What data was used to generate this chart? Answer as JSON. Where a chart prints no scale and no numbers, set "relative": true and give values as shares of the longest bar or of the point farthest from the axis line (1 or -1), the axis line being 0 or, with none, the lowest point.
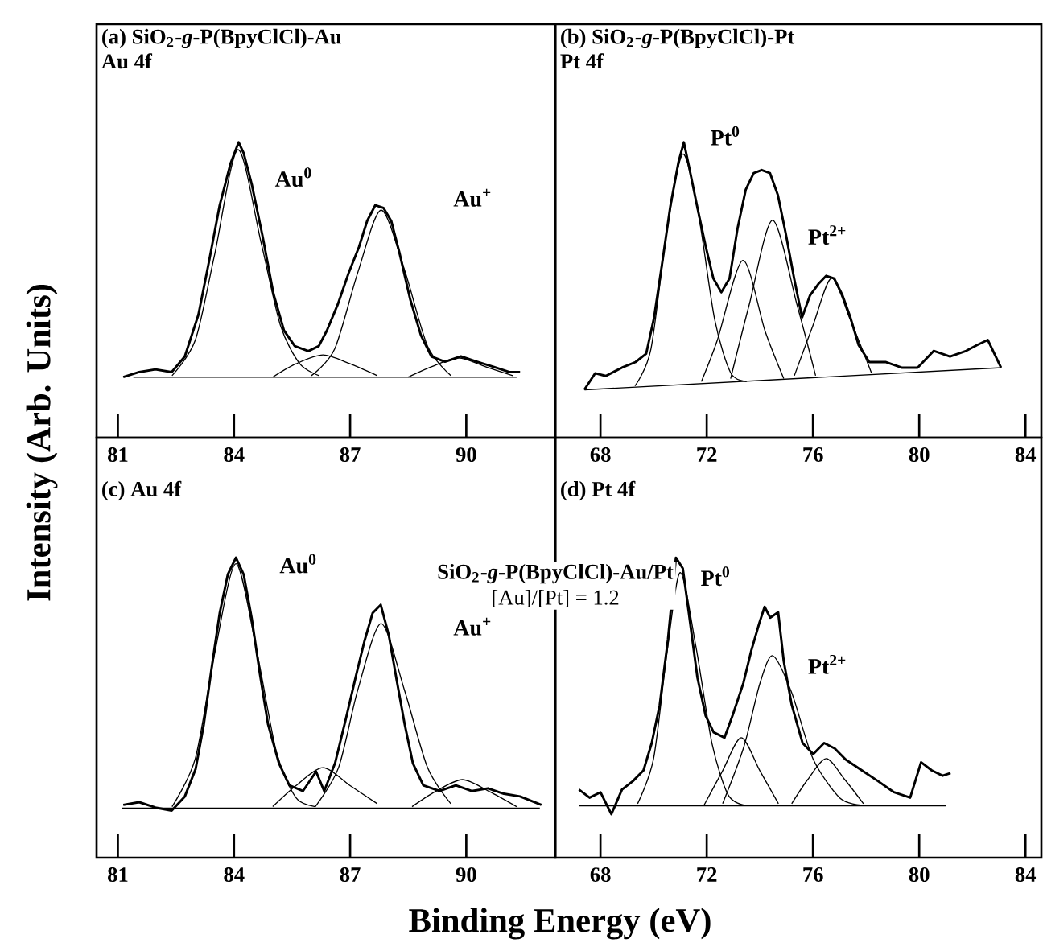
{
  "chart_data": [
    {
      "type": "line",
      "relative": true,
      "title": "(a) SiO$_{2}$-*g*-P(BpyClCl)-Au",
      "subtitle": "Au 4f",
      "ylabel": "Intensity (Arb. Units)",
      "xlim": [
        80.45,
        92.3
      ],
      "xticks": [
        81,
        84,
        87,
        90
      ],
      "series": [
        {
          "color": "#000000",
          "x": [
            81.14,
            81.55,
            81.97,
            82.39,
            82.73,
            83.08,
            83.35,
            83.63,
            83.91,
            84.12,
            84.25,
            84.46,
            84.74,
            85.02,
            85.29,
            85.57,
            85.92,
            86.19,
            86.4,
            86.68,
            86.96,
            87.23,
            87.44,
            87.65,
            87.86,
            88.06,
            88.27,
            88.55,
            88.83,
            89.1,
            89.45,
            89.86,
            90.28,
            90.7,
            91.11,
            91.39
          ],
          "values": [
            0.205,
            0.222,
            0.231,
            0.222,
            0.275,
            0.416,
            0.593,
            0.787,
            0.928,
            1.0,
            0.963,
            0.857,
            0.681,
            0.487,
            0.363,
            0.31,
            0.293,
            0.31,
            0.363,
            0.451,
            0.557,
            0.646,
            0.734,
            0.787,
            0.778,
            0.734,
            0.628,
            0.469,
            0.346,
            0.275,
            0.257,
            0.275,
            0.257,
            0.24,
            0.222,
            0.222
          ]
        },
        {
          "color": "#000000",
          "x": [
            81.4,
            91.3
          ],
          "values": [
            0.205,
            0.205
          ]
        },
        {
          "color": "#000000",
          "x": [
            82.4,
            83.0,
            83.5,
            84.1,
            84.7,
            85.2,
            85.7,
            86.2
          ],
          "values": [
            0.21,
            0.33,
            0.62,
            0.975,
            0.66,
            0.38,
            0.25,
            0.21
          ]
        },
        {
          "color": "#000000",
          "x": [
            86.0,
            86.6,
            87.2,
            87.8,
            88.4,
            89.0,
            89.6
          ],
          "values": [
            0.21,
            0.3,
            0.56,
            0.77,
            0.57,
            0.31,
            0.21
          ]
        },
        {
          "color": "#000000",
          "x": [
            85.0,
            85.6,
            86.3,
            87.0,
            87.7
          ],
          "values": [
            0.205,
            0.25,
            0.28,
            0.25,
            0.21
          ]
        },
        {
          "color": "#000000",
          "x": [
            88.5,
            89.1,
            89.8,
            90.5,
            91.2
          ],
          "values": [
            0.205,
            0.24,
            0.27,
            0.24,
            0.21
          ]
        }
      ],
      "annotations": [
        "Au$^{0}$",
        "Au$^{+}$"
      ]
    },
    {
      "type": "line",
      "relative": true,
      "title": "(b) SiO$_{2}$-*g*-P(BpyClCl)-Pt",
      "subtitle": "Pt 4f",
      "xlim": [
        66.3,
        84.6
      ],
      "xticks": [
        68,
        72,
        76,
        80,
        84
      ],
      "series": [
        {
          "color": "#000000",
          "x": [
            67.39,
            67.8,
            68.2,
            68.81,
            69.32,
            69.72,
            70.02,
            70.33,
            70.63,
            70.94,
            71.14,
            71.34,
            71.64,
            71.95,
            72.25,
            72.55,
            72.86,
            73.16,
            73.47,
            73.77,
            74.07,
            74.38,
            74.68,
            74.98,
            75.29,
            75.59,
            75.89,
            76.2,
            76.5,
            76.8,
            77.11,
            77.41,
            77.72,
            78.12,
            78.73,
            79.34,
            79.94,
            80.55,
            81.16,
            81.77,
            82.17,
            82.58,
            83.08
          ],
          "values": [
            0.162,
            0.218,
            0.209,
            0.237,
            0.256,
            0.284,
            0.407,
            0.595,
            0.783,
            0.934,
            1.0,
            0.915,
            0.783,
            0.652,
            0.539,
            0.492,
            0.539,
            0.708,
            0.84,
            0.896,
            0.906,
            0.896,
            0.821,
            0.689,
            0.539,
            0.407,
            0.482,
            0.52,
            0.548,
            0.539,
            0.482,
            0.407,
            0.313,
            0.256,
            0.256,
            0.237,
            0.237,
            0.294,
            0.275,
            0.294,
            0.313,
            0.331,
            0.237
          ]
        },
        {
          "color": "#000000",
          "x": [
            67.4,
            83.1
          ],
          "values": [
            0.162,
            0.237
          ]
        },
        {
          "color": "#000000",
          "x": [
            69.3,
            69.9,
            70.5,
            71.1,
            71.7,
            72.3,
            72.9,
            73.5
          ],
          "values": [
            0.175,
            0.3,
            0.7,
            0.96,
            0.75,
            0.4,
            0.22,
            0.19
          ]
        },
        {
          "color": "#000000",
          "x": [
            71.8,
            72.4,
            73.36,
            74.2,
            74.9
          ],
          "values": [
            0.19,
            0.33,
            0.6,
            0.36,
            0.2
          ]
        },
        {
          "color": "#000000",
          "x": [
            72.9,
            73.6,
            74.48,
            75.4,
            76.1
          ],
          "values": [
            0.2,
            0.45,
            0.736,
            0.45,
            0.21
          ]
        },
        {
          "color": "#000000",
          "x": [
            75.3,
            76.0,
            76.7,
            77.4,
            78.2
          ],
          "values": [
            0.21,
            0.38,
            0.54,
            0.4,
            0.22
          ]
        }
      ],
      "annotations": [
        "Pt$^{0}$",
        "Pt$^{2+}$"
      ]
    },
    {
      "type": "line",
      "relative": true,
      "title": "(c) Au 4f",
      "xlabel": "Binding Energy (eV)",
      "xlim": [
        80.45,
        92.3
      ],
      "xticks": [
        81,
        84,
        87,
        90
      ],
      "series": [
        {
          "color": "#000000",
          "x": [
            81.14,
            81.55,
            81.97,
            82.39,
            82.73,
            83.01,
            83.22,
            83.42,
            83.63,
            83.84,
            84.05,
            84.25,
            84.46,
            84.67,
            84.88,
            85.16,
            85.43,
            85.78,
            86.12,
            86.33,
            86.61,
            86.89,
            87.16,
            87.37,
            87.58,
            87.79,
            88.0,
            88.2,
            88.41,
            88.62,
            88.89,
            89.31,
            89.73,
            90.14,
            90.56,
            90.97,
            91.39,
            91.94
          ],
          "values": [
            0.176,
            0.185,
            0.167,
            0.157,
            0.204,
            0.296,
            0.444,
            0.63,
            0.815,
            0.944,
            1.0,
            0.944,
            0.796,
            0.611,
            0.444,
            0.315,
            0.241,
            0.222,
            0.287,
            0.222,
            0.315,
            0.463,
            0.611,
            0.722,
            0.815,
            0.843,
            0.741,
            0.593,
            0.444,
            0.315,
            0.241,
            0.222,
            0.241,
            0.222,
            0.231,
            0.213,
            0.204,
            0.176
          ]
        },
        {
          "color": "#000000",
          "x": [
            81.1,
            91.9
          ],
          "values": [
            0.165,
            0.165
          ]
        },
        {
          "color": "#000000",
          "x": [
            82.4,
            83.0,
            83.5,
            84.05,
            84.6,
            85.1,
            85.6,
            86.1
          ],
          "values": [
            0.17,
            0.33,
            0.68,
            0.98,
            0.68,
            0.35,
            0.2,
            0.17
          ]
        },
        {
          "color": "#000000",
          "x": [
            86.1,
            86.7,
            87.2,
            87.8,
            88.4,
            89.0,
            89.6
          ],
          "values": [
            0.17,
            0.3,
            0.56,
            0.78,
            0.56,
            0.3,
            0.18
          ]
        },
        {
          "color": "#000000",
          "x": [
            85.0,
            85.6,
            86.3,
            87.0,
            87.7
          ],
          "values": [
            0.17,
            0.24,
            0.3,
            0.24,
            0.18
          ]
        },
        {
          "color": "#000000",
          "x": [
            88.6,
            89.2,
            89.9,
            90.6,
            91.3
          ],
          "values": [
            0.17,
            0.22,
            0.26,
            0.22,
            0.17
          ]
        }
      ],
      "annotations": [
        "Au$^{0}$",
        "Au$^{+}$",
        "SiO$_{2}$-*g*-P(BpyClCl)-Au/Pt",
        "[Au]/[Pt] = 1.2"
      ]
    },
    {
      "type": "line",
      "relative": true,
      "title": "(d) Pt 4f",
      "xlim": [
        66.3,
        84.6
      ],
      "xticks": [
        68,
        72,
        76,
        80,
        84
      ],
      "series": [
        {
          "color": "#000000",
          "x": [
            67.19,
            67.59,
            68.0,
            68.41,
            68.81,
            69.22,
            69.62,
            69.93,
            70.23,
            70.54,
            70.84,
            71.1,
            71.35,
            71.65,
            71.96,
            72.26,
            72.67,
            72.97,
            73.38,
            73.68,
            73.98,
            74.18,
            74.39,
            74.69,
            74.9,
            75.2,
            75.61,
            76.01,
            76.42,
            76.82,
            77.23,
            77.84,
            78.45,
            79.05,
            79.66,
            80.07,
            80.47,
            80.88,
            81.18
          ],
          "values": [
            0.227,
            0.2,
            0.218,
            0.145,
            0.227,
            0.255,
            0.291,
            0.382,
            0.509,
            0.727,
            1.0,
            0.964,
            0.8,
            0.6,
            0.473,
            0.418,
            0.4,
            0.473,
            0.582,
            0.691,
            0.782,
            0.836,
            0.8,
            0.818,
            0.655,
            0.509,
            0.382,
            0.345,
            0.382,
            0.364,
            0.327,
            0.291,
            0.255,
            0.218,
            0.2,
            0.318,
            0.291,
            0.273,
            0.282
          ]
        },
        {
          "color": "#000000",
          "x": [
            67.2,
            81.0
          ],
          "values": [
            0.173,
            0.173
          ]
        },
        {
          "color": "#000000",
          "x": [
            69.4,
            70.0,
            70.5,
            71.0,
            71.6,
            72.2,
            72.8,
            73.4
          ],
          "values": [
            0.18,
            0.33,
            0.68,
            0.95,
            0.7,
            0.38,
            0.21,
            0.175
          ]
        },
        {
          "color": "#000000",
          "x": [
            71.9,
            72.6,
            73.3,
            74.0,
            74.7
          ],
          "values": [
            0.175,
            0.29,
            0.4,
            0.29,
            0.18
          ]
        },
        {
          "color": "#000000",
          "x": [
            72.6,
            73.4,
            74.0,
            74.49,
            75.2,
            76.0,
            77.0,
            77.8
          ],
          "values": [
            0.18,
            0.37,
            0.58,
            0.673,
            0.55,
            0.33,
            0.2,
            0.175
          ]
        },
        {
          "color": "#000000",
          "x": [
            75.2,
            75.8,
            76.5,
            77.2,
            77.9
          ],
          "values": [
            0.18,
            0.26,
            0.33,
            0.26,
            0.18
          ]
        }
      ],
      "annotations": [
        "Pt$^{0}$",
        "Pt$^{2+}$"
      ]
    }
  ]
}
